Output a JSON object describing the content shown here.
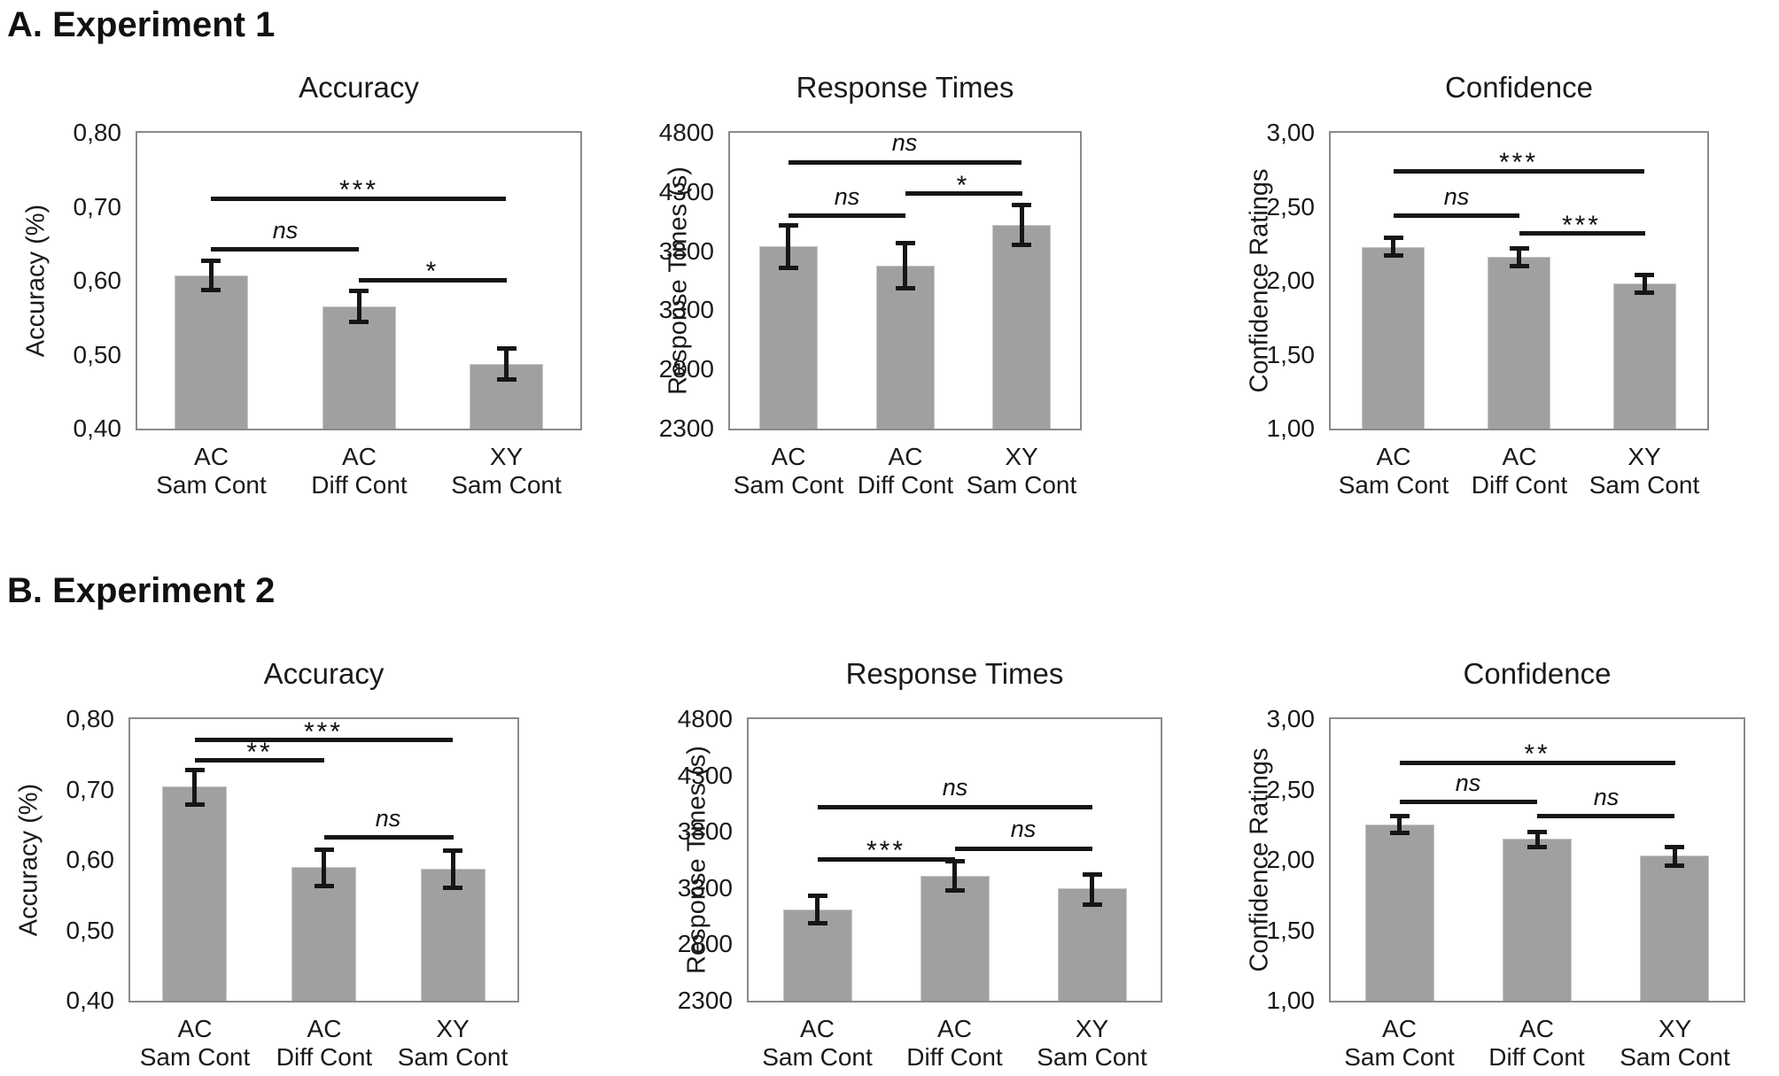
{
  "headings": {
    "experiment1": "A. Experiment 1",
    "experiment2": "B. Experiment 2"
  },
  "colors": {
    "bar_fill": "#a0a0a0",
    "bar_edge": "#c6c6c6",
    "axis_border": "#8a8a8a",
    "ink": "#161616"
  },
  "chart_data": [
    {
      "id": "exp1-accuracy",
      "type": "bar",
      "title": "Accuracy",
      "ylabel": "Accuracy (%)",
      "ylim": [
        0.4,
        0.8
      ],
      "yticks": [
        "0,80",
        "0,70",
        "0,60",
        "0,50",
        "0,40"
      ],
      "categories": [
        [
          "AC",
          "Sam Cont"
        ],
        [
          "AC",
          "Diff Cont"
        ],
        [
          "XY",
          "Sam Cont"
        ]
      ],
      "values": [
        0.607,
        0.565,
        0.487
      ],
      "err_low": [
        0.588,
        0.544,
        0.466
      ],
      "err_high": [
        0.627,
        0.586,
        0.508
      ],
      "significance": [
        {
          "pair": [
            0,
            2
          ],
          "label": "***",
          "y": 0.711
        },
        {
          "pair": [
            0,
            1
          ],
          "label": "ns",
          "y": 0.642
        },
        {
          "pair": [
            1,
            2
          ],
          "label": "*",
          "y": 0.601
        }
      ]
    },
    {
      "id": "exp1-response-times",
      "type": "bar",
      "title": "Response Times",
      "ylabel": "Response Times (s)",
      "ylim": [
        2300,
        4800
      ],
      "yticks": [
        "4800",
        "4300",
        "3800",
        "3300",
        "2800",
        "2300"
      ],
      "categories": [
        [
          "AC",
          "Sam Cont"
        ],
        [
          "AC",
          "Diff Cont"
        ],
        [
          "XY",
          "Sam Cont"
        ]
      ],
      "values": [
        3840,
        3680,
        4020
      ],
      "err_low": [
        3655,
        3490,
        3850
      ],
      "err_high": [
        4015,
        3865,
        4190
      ],
      "significance": [
        {
          "pair": [
            0,
            2
          ],
          "label": "ns",
          "y": 4550
        },
        {
          "pair": [
            1,
            2
          ],
          "label": "*",
          "y": 4285
        },
        {
          "pair": [
            0,
            1
          ],
          "label": "ns",
          "y": 4100
        }
      ]
    },
    {
      "id": "exp1-confidence",
      "type": "bar",
      "title": "Confidence",
      "ylabel": "Confidence Ratings",
      "ylim": [
        1.0,
        3.0
      ],
      "yticks": [
        "3,00",
        "2,50",
        "2,00",
        "1,50",
        "1,00"
      ],
      "categories": [
        [
          "AC",
          "Sam Cont"
        ],
        [
          "AC",
          "Diff Cont"
        ],
        [
          "XY",
          "Sam Cont"
        ]
      ],
      "values": [
        2.23,
        2.16,
        1.98
      ],
      "err_low": [
        2.17,
        2.1,
        1.92
      ],
      "err_high": [
        2.29,
        2.22,
        2.04
      ],
      "significance": [
        {
          "pair": [
            0,
            2
          ],
          "label": "***",
          "y": 2.74
        },
        {
          "pair": [
            0,
            1
          ],
          "label": "ns",
          "y": 2.44
        },
        {
          "pair": [
            1,
            2
          ],
          "label": "***",
          "y": 2.32
        }
      ]
    },
    {
      "id": "exp2-accuracy",
      "type": "bar",
      "title": "Accuracy",
      "ylabel": "Accuracy (%)",
      "ylim": [
        0.4,
        0.8
      ],
      "yticks": [
        "0,80",
        "0,70",
        "0,60",
        "0,50",
        "0,40"
      ],
      "categories": [
        [
          "AC",
          "Sam Cont"
        ],
        [
          "AC",
          "Diff Cont"
        ],
        [
          "XY",
          "Sam Cont"
        ]
      ],
      "values": [
        0.705,
        0.59,
        0.588
      ],
      "err_low": [
        0.678,
        0.563,
        0.561
      ],
      "err_high": [
        0.728,
        0.615,
        0.613
      ],
      "significance": [
        {
          "pair": [
            0,
            2
          ],
          "label": "***",
          "y": 0.77
        },
        {
          "pair": [
            0,
            1
          ],
          "label": "**",
          "y": 0.741
        },
        {
          "pair": [
            1,
            2
          ],
          "label": "ns",
          "y": 0.632
        }
      ]
    },
    {
      "id": "exp2-response-times",
      "type": "bar",
      "title": "Response Times",
      "ylabel": "Response Times (s)",
      "ylim": [
        2300,
        4800
      ],
      "yticks": [
        "4800",
        "4300",
        "3800",
        "3300",
        "2800",
        "2300"
      ],
      "categories": [
        [
          "AC",
          "Sam Cont"
        ],
        [
          "AC",
          "Diff Cont"
        ],
        [
          "XY",
          "Sam Cont"
        ]
      ],
      "values": [
        3110,
        3410,
        3300
      ],
      "err_low": [
        2990,
        3275,
        3155
      ],
      "err_high": [
        3230,
        3540,
        3420
      ],
      "significance": [
        {
          "pair": [
            0,
            2
          ],
          "label": "ns",
          "y": 4020
        },
        {
          "pair": [
            1,
            2
          ],
          "label": "ns",
          "y": 3650
        },
        {
          "pair": [
            0,
            1
          ],
          "label": "***",
          "y": 3555
        }
      ]
    },
    {
      "id": "exp2-confidence",
      "type": "bar",
      "title": "Confidence",
      "ylabel": "Confidence Ratings",
      "ylim": [
        1.0,
        3.0
      ],
      "yticks": [
        "3,00",
        "2,50",
        "2,00",
        "1,50",
        "1,00"
      ],
      "categories": [
        [
          "AC",
          "Sam Cont"
        ],
        [
          "AC",
          "Diff Cont"
        ],
        [
          "XY",
          "Sam Cont"
        ]
      ],
      "values": [
        2.25,
        2.15,
        2.03
      ],
      "err_low": [
        2.19,
        2.09,
        1.96
      ],
      "err_high": [
        2.31,
        2.2,
        2.09
      ],
      "significance": [
        {
          "pair": [
            0,
            2
          ],
          "label": "**",
          "y": 2.69
        },
        {
          "pair": [
            0,
            1
          ],
          "label": "ns",
          "y": 2.41
        },
        {
          "pair": [
            1,
            2
          ],
          "label": "ns",
          "y": 2.31
        }
      ]
    }
  ]
}
